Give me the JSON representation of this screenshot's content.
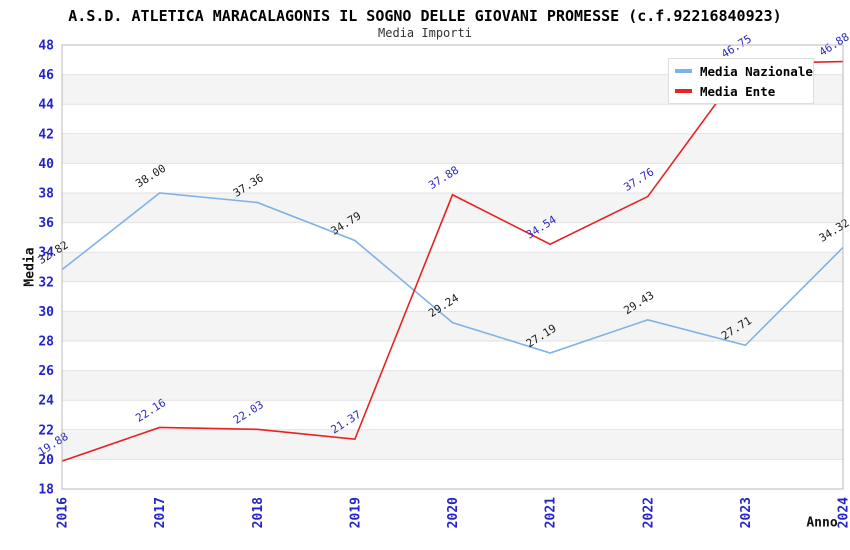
{
  "chart_data": {
    "type": "line",
    "title": "A.S.D. ATLETICA MARACALAGONIS IL SOGNO DELLE GIOVANI PROMESSE (c.f.92216840923)",
    "subtitle": "Media Importi",
    "xlabel": "Anno",
    "ylabel": "Media",
    "categories": [
      "2016",
      "2017",
      "2018",
      "2019",
      "2020",
      "2021",
      "2022",
      "2023",
      "2024"
    ],
    "series": [
      {
        "name": "Media Nazionale",
        "color": "#7fb2e5",
        "label_color": "#1a1a1a",
        "values": [
          32.82,
          38.0,
          37.36,
          34.79,
          29.24,
          27.19,
          29.43,
          27.71,
          34.32
        ]
      },
      {
        "name": "Media Ente",
        "color": "#e62222",
        "label_color": "#2a2abd",
        "values": [
          19.88,
          22.16,
          22.03,
          21.37,
          37.88,
          34.54,
          37.76,
          46.75,
          46.88
        ]
      }
    ],
    "ylim": [
      18,
      48
    ],
    "ytick_step": 2,
    "yticks": [
      18,
      20,
      22,
      24,
      26,
      28,
      30,
      32,
      34,
      36,
      38,
      40,
      42,
      44,
      46,
      48
    ],
    "grid": true,
    "legend_position": "top-right",
    "colors": {
      "tick": "#2323cc",
      "grid": "#e2e2e2",
      "band": "#f4f4f4",
      "border": "#b8b8b8",
      "title": "#000000",
      "subtitle": "#333333"
    }
  }
}
